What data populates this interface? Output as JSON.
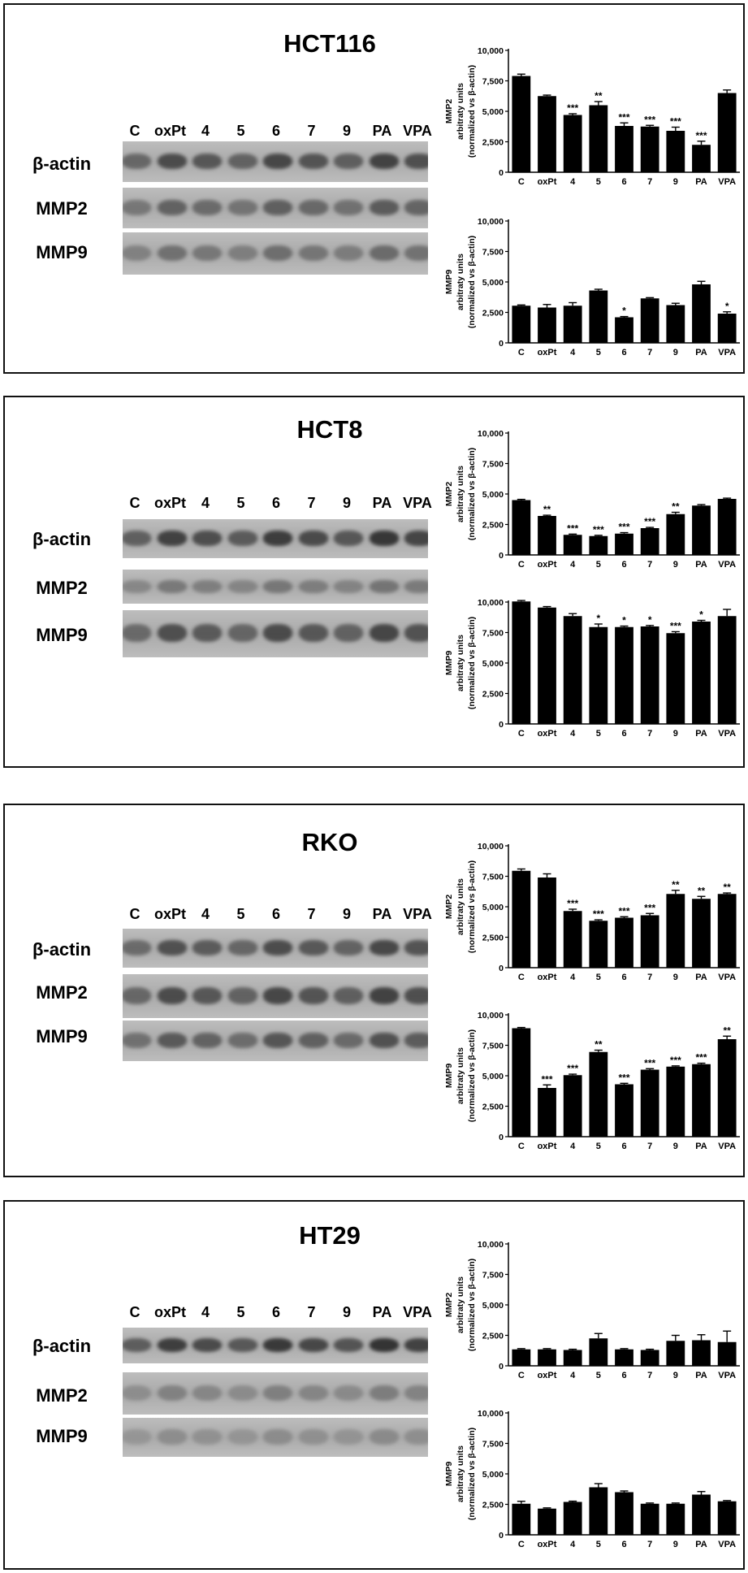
{
  "lane_labels": [
    "C",
    "oxPt",
    "4",
    "5",
    "6",
    "7",
    "9",
    "PA",
    "VPA"
  ],
  "blot_labels": [
    "β-actin",
    "MMP2",
    "MMP9"
  ],
  "panels": [
    {
      "cell_line": "HCT116",
      "blot_tones": {
        "actin": "#3a3a3a",
        "mmp2": "#555555",
        "mmp9": "#666666"
      }
    },
    {
      "cell_line": "HCT8",
      "blot_tones": {
        "actin": "#2e2e2e",
        "mmp2": "#707070",
        "mmp9": "#3e3e3e"
      }
    },
    {
      "cell_line": "RKO",
      "blot_tones": {
        "actin": "#404040",
        "mmp2": "#3a3a3a",
        "mmp9": "#4a4a4a"
      }
    },
    {
      "cell_line": "HT29",
      "blot_tones": {
        "actin": "#2a2a2a",
        "mmp2": "#7a7a7a",
        "mmp9": "#888888"
      }
    }
  ],
  "chart_data": [
    {
      "type": "bar",
      "panel": "HCT116",
      "marker": "MMP2",
      "ylabel": [
        "MMP2",
        "arbitraty units",
        "(normalized vs β-actin)"
      ],
      "categories": [
        "C",
        "oxPt",
        "4",
        "5",
        "6",
        "7",
        "9",
        "PA",
        "VPA"
      ],
      "values": [
        7900,
        6250,
        4700,
        5500,
        3800,
        3750,
        3400,
        2250,
        6500
      ],
      "errors": [
        150,
        80,
        100,
        300,
        250,
        100,
        300,
        300,
        250
      ],
      "significance": [
        "",
        "",
        "***",
        "**",
        "***",
        "***",
        "***",
        "***",
        ""
      ],
      "ylim": [
        0,
        10000
      ],
      "yticks": [
        "0",
        "2,500",
        "5,000",
        "7,500",
        "10,000"
      ]
    },
    {
      "type": "bar",
      "panel": "HCT116",
      "marker": "MMP9",
      "ylabel": [
        "MMP9",
        "arbitraty units",
        "(normalized vs β-actin)"
      ],
      "categories": [
        "C",
        "oxPt",
        "4",
        "5",
        "6",
        "7",
        "9",
        "PA",
        "VPA"
      ],
      "values": [
        3050,
        2900,
        3050,
        4300,
        2100,
        3650,
        3100,
        4800,
        2400
      ],
      "errors": [
        60,
        250,
        250,
        100,
        60,
        60,
        150,
        250,
        150
      ],
      "significance": [
        "",
        "",
        "",
        "",
        "*",
        "",
        "",
        "",
        "*"
      ],
      "ylim": [
        0,
        10000
      ],
      "yticks": [
        "0",
        "2,500",
        "5,000",
        "7,500",
        "10,000"
      ]
    },
    {
      "type": "bar",
      "panel": "HCT8",
      "marker": "MMP2",
      "ylabel": [
        "MMP2",
        "arbitraty units",
        "(normalized vs β-actin)"
      ],
      "categories": [
        "C",
        "oxPt",
        "4",
        "5",
        "6",
        "7",
        "9",
        "PA",
        "VPA"
      ],
      "values": [
        4500,
        3200,
        1650,
        1550,
        1750,
        2200,
        3350,
        4050,
        4600
      ],
      "errors": [
        60,
        60,
        60,
        60,
        80,
        60,
        150,
        80,
        60
      ],
      "significance": [
        "",
        "**",
        "***",
        "***",
        "***",
        "***",
        "**",
        "",
        ""
      ],
      "ylim": [
        0,
        10000
      ],
      "yticks": [
        "0",
        "2,500",
        "5,000",
        "7,500",
        "10,000"
      ]
    },
    {
      "type": "bar",
      "panel": "HCT8",
      "marker": "MMP9",
      "ylabel": [
        "MMP9",
        "arbitraty units",
        "(normalized vs β-actin)"
      ],
      "categories": [
        "C",
        "oxPt",
        "4",
        "5",
        "6",
        "7",
        "9",
        "PA",
        "VPA"
      ],
      "values": [
        10050,
        9550,
        8850,
        7950,
        7950,
        8000,
        7450,
        8400,
        8850
      ],
      "errors": [
        80,
        80,
        200,
        250,
        80,
        80,
        120,
        100,
        550
      ],
      "significance": [
        "",
        "",
        "",
        "*",
        "*",
        "*",
        "***",
        "*",
        ""
      ],
      "ylim": [
        0,
        10000
      ],
      "yticks": [
        "0",
        "2,500",
        "5,000",
        "7,500",
        "10,000"
      ]
    },
    {
      "type": "bar",
      "panel": "RKO",
      "marker": "MMP2",
      "ylabel": [
        "MMP2",
        "arbitraty units",
        "(normalized vs β-actin)"
      ],
      "categories": [
        "C",
        "oxPt",
        "4",
        "5",
        "6",
        "7",
        "9",
        "PA",
        "VPA"
      ],
      "values": [
        7950,
        7400,
        4650,
        3850,
        4100,
        4300,
        6050,
        5650,
        6050
      ],
      "errors": [
        150,
        300,
        150,
        80,
        80,
        150,
        300,
        200,
        80
      ],
      "significance": [
        "",
        "",
        "***",
        "***",
        "***",
        "***",
        "**",
        "**",
        "**"
      ],
      "ylim": [
        0,
        10000
      ],
      "yticks": [
        "0",
        "2,500",
        "5,000",
        "7,500",
        "10,000"
      ]
    },
    {
      "type": "bar",
      "panel": "RKO",
      "marker": "MMP9",
      "ylabel": [
        "MMP9",
        "arbitraty units",
        "(normalized vs β-actin)"
      ],
      "categories": [
        "C",
        "oxPt",
        "4",
        "5",
        "6",
        "7",
        "9",
        "PA",
        "VPA"
      ],
      "values": [
        8900,
        4000,
        5050,
        6950,
        4300,
        5500,
        5750,
        5950,
        8000
      ],
      "errors": [
        60,
        250,
        80,
        150,
        80,
        80,
        60,
        80,
        250
      ],
      "significance": [
        "",
        "***",
        "***",
        "**",
        "***",
        "***",
        "***",
        "***",
        "**"
      ],
      "ylim": [
        0,
        10000
      ],
      "yticks": [
        "0",
        "2,500",
        "5,000",
        "7,500",
        "10,000"
      ]
    },
    {
      "type": "bar",
      "panel": "HT29",
      "marker": "MMP2",
      "ylabel": [
        "MMP2",
        "arbitraty units",
        "(normalized vs β-actin)"
      ],
      "categories": [
        "C",
        "oxPt",
        "4",
        "5",
        "6",
        "7",
        "9",
        "PA",
        "VPA"
      ],
      "values": [
        1350,
        1350,
        1300,
        2250,
        1350,
        1300,
        2050,
        2100,
        1950
      ],
      "errors": [
        60,
        60,
        60,
        400,
        60,
        60,
        450,
        450,
        900
      ],
      "significance": [
        "",
        "",
        "",
        "",
        "",
        "",
        "",
        "",
        ""
      ],
      "ylim": [
        0,
        10000
      ],
      "yticks": [
        "0",
        "2,500",
        "5,000",
        "7,500",
        "10,000"
      ]
    },
    {
      "type": "bar",
      "panel": "HT29",
      "marker": "MMP9",
      "ylabel": [
        "MMP9",
        "arbitraty units",
        "(normalized vs β-actin)"
      ],
      "categories": [
        "C",
        "oxPt",
        "4",
        "5",
        "6",
        "7",
        "9",
        "PA",
        "VPA"
      ],
      "values": [
        2550,
        2150,
        2700,
        3900,
        3500,
        2550,
        2550,
        3300,
        2750
      ],
      "errors": [
        200,
        60,
        60,
        300,
        100,
        60,
        60,
        250,
        60
      ],
      "significance": [
        "",
        "",
        "",
        "",
        "",
        "",
        "",
        "",
        ""
      ],
      "ylim": [
        0,
        10000
      ],
      "yticks": [
        "0",
        "2,500",
        "5,000",
        "7,500",
        "10,000"
      ]
    }
  ]
}
